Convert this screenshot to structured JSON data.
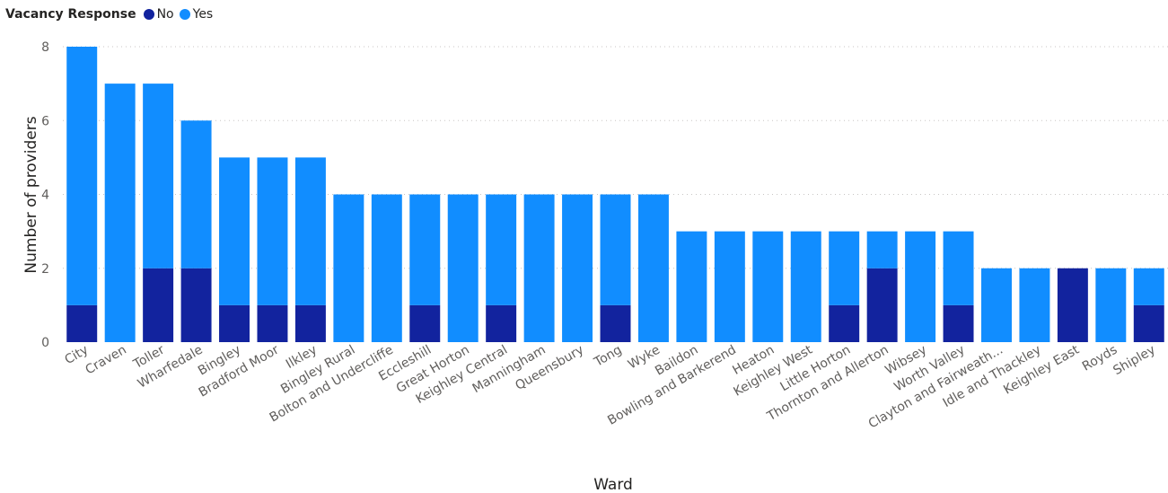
{
  "legend": {
    "title": "Vacancy Response",
    "items": [
      {
        "label": "No",
        "color": "#12239E"
      },
      {
        "label": "Yes",
        "color": "#118DFF"
      }
    ]
  },
  "chart_data": {
    "type": "bar",
    "stacked": true,
    "xlabel": "Ward",
    "ylabel": "Number of providers",
    "ylim": [
      0,
      8
    ],
    "yticks": [
      0,
      2,
      4,
      6,
      8
    ],
    "grid": true,
    "legend_position": "top-left",
    "categories": [
      "City",
      "Craven",
      "Toller",
      "Wharfedale",
      "Bingley",
      "Bradford Moor",
      "Ilkley",
      "Bingley Rural",
      "Bolton and Undercliffe",
      "Eccleshill",
      "Great Horton",
      "Keighley Central",
      "Manningham",
      "Queensbury",
      "Tong",
      "Wyke",
      "Baildon",
      "Bowling and Barkerend",
      "Heaton",
      "Keighley West",
      "Little Horton",
      "Thornton and Allerton",
      "Wibsey",
      "Worth Valley",
      "Clayton and Fairweath...",
      "Idle and Thackley",
      "Keighley East",
      "Royds",
      "Shipley"
    ],
    "series": [
      {
        "name": "No",
        "color": "#12239E",
        "values": [
          1,
          0,
          2,
          2,
          1,
          1,
          1,
          0,
          0,
          1,
          0,
          1,
          0,
          0,
          1,
          0,
          0,
          0,
          0,
          0,
          1,
          2,
          0,
          1,
          0,
          0,
          2,
          0,
          1
        ]
      },
      {
        "name": "Yes",
        "color": "#118DFF",
        "values": [
          7,
          7,
          5,
          4,
          4,
          4,
          4,
          4,
          4,
          3,
          4,
          3,
          4,
          4,
          3,
          4,
          3,
          3,
          3,
          3,
          2,
          1,
          3,
          2,
          2,
          2,
          0,
          2,
          1
        ]
      }
    ]
  }
}
